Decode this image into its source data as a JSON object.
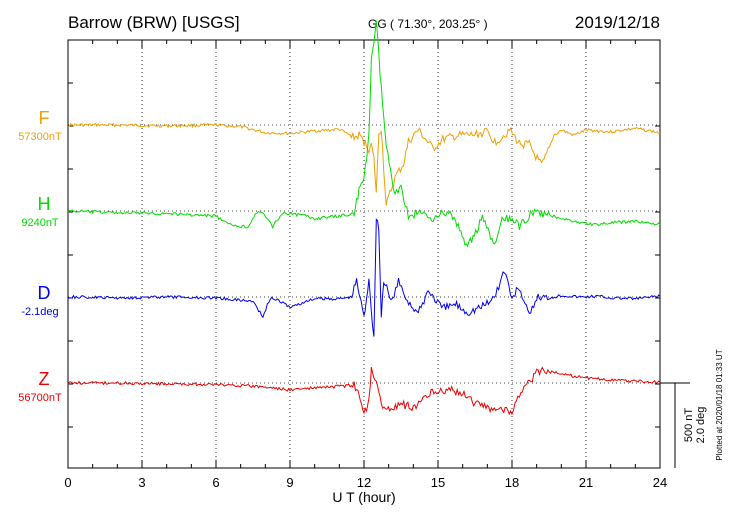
{
  "header": {
    "station": "Barrow (BRW)  [USGS]",
    "coords": "GG ( 71.30°, 203.25° )",
    "date": "2019/12/18"
  },
  "plotted_note": "Plotted at 2020/01/18 01:33 UT",
  "chart_data": {
    "type": "line",
    "xlabel": "U T (hour)",
    "xlim": [
      0,
      24
    ],
    "xticks": [
      0,
      3,
      6,
      9,
      12,
      15,
      18,
      21,
      24
    ],
    "scale_bar": {
      "line1": "500 nT",
      "line2": "2.0 deg"
    },
    "series": [
      {
        "name": "F",
        "baseline": "57300nT",
        "color": "#f0a000",
        "points": [
          [
            0,
            0
          ],
          [
            2,
            0
          ],
          [
            4,
            -5
          ],
          [
            6,
            0
          ],
          [
            7,
            -10
          ],
          [
            8,
            -45
          ],
          [
            9,
            -50
          ],
          [
            10,
            -35
          ],
          [
            11,
            -25
          ],
          [
            11.6,
            -75
          ],
          [
            11.8,
            -60
          ],
          [
            12,
            -100
          ],
          [
            12.2,
            -140
          ],
          [
            12.3,
            -120
          ],
          [
            12.4,
            -200
          ],
          [
            12.5,
            -400
          ],
          [
            12.6,
            -50
          ],
          [
            12.7,
            -20
          ],
          [
            12.9,
            -480
          ],
          [
            13.1,
            -380
          ],
          [
            13.3,
            -300
          ],
          [
            13.6,
            -230
          ],
          [
            13.8,
            -100
          ],
          [
            14.2,
            -30
          ],
          [
            14.8,
            -140
          ],
          [
            15.2,
            -85
          ],
          [
            15.6,
            -70
          ],
          [
            16,
            -60
          ],
          [
            16.4,
            -60
          ],
          [
            17,
            -40
          ],
          [
            17.3,
            -100
          ],
          [
            17.6,
            -70
          ],
          [
            17.9,
            -30
          ],
          [
            18.3,
            -110
          ],
          [
            18.7,
            -115
          ],
          [
            18.9,
            -170
          ],
          [
            19.2,
            -240
          ],
          [
            19.4,
            -180
          ],
          [
            19.7,
            -60
          ],
          [
            20,
            -30
          ],
          [
            20.5,
            -60
          ],
          [
            21,
            -30
          ],
          [
            22,
            -40
          ],
          [
            23,
            -20
          ],
          [
            24,
            -45
          ]
        ]
      },
      {
        "name": "H",
        "baseline": "9240nT",
        "color": "#00dd00",
        "points": [
          [
            0,
            0
          ],
          [
            2,
            -10
          ],
          [
            4,
            -15
          ],
          [
            6,
            -30
          ],
          [
            6.5,
            -80
          ],
          [
            7.3,
            -95
          ],
          [
            7.6,
            -10
          ],
          [
            7.9,
            -15
          ],
          [
            8.3,
            -90
          ],
          [
            8.7,
            -10
          ],
          [
            9.5,
            -25
          ],
          [
            10,
            -45
          ],
          [
            11,
            -30
          ],
          [
            11.4,
            -20
          ],
          [
            11.6,
            -10
          ],
          [
            11.8,
            120
          ],
          [
            12,
            180
          ],
          [
            12.2,
            440
          ],
          [
            12.3,
            900
          ],
          [
            12.5,
            1100
          ],
          [
            12.7,
            720
          ],
          [
            12.9,
            380
          ],
          [
            13.2,
            120
          ],
          [
            13.5,
            140
          ],
          [
            13.8,
            -30
          ],
          [
            14.2,
            -10
          ],
          [
            14.8,
            -40
          ],
          [
            15.2,
            -10
          ],
          [
            15.6,
            -30
          ],
          [
            16.2,
            -210
          ],
          [
            16.8,
            -45
          ],
          [
            17.3,
            -205
          ],
          [
            17.6,
            -60
          ],
          [
            17.9,
            -40
          ],
          [
            18.3,
            -90
          ],
          [
            18.8,
            -10
          ],
          [
            19.2,
            -20
          ],
          [
            19.7,
            -30
          ],
          [
            20.2,
            -50
          ],
          [
            20.8,
            -70
          ],
          [
            21.4,
            -80
          ],
          [
            22,
            -70
          ],
          [
            23,
            -60
          ],
          [
            24,
            -80
          ]
        ]
      },
      {
        "name": "D",
        "baseline": "-2.1deg",
        "color": "#0000ee",
        "points": [
          [
            0,
            0
          ],
          [
            2,
            -5
          ],
          [
            4,
            0
          ],
          [
            6,
            -5
          ],
          [
            7.5,
            -25
          ],
          [
            7.9,
            -115
          ],
          [
            8.2,
            -5
          ],
          [
            8.6,
            -25
          ],
          [
            9,
            -60
          ],
          [
            10,
            -10
          ],
          [
            11,
            -10
          ],
          [
            11.5,
            0
          ],
          [
            11.7,
            100
          ],
          [
            12,
            -120
          ],
          [
            12.2,
            110
          ],
          [
            12.4,
            -250
          ],
          [
            12.5,
            480
          ],
          [
            12.6,
            400
          ],
          [
            12.7,
            -110
          ],
          [
            12.8,
            100
          ],
          [
            13.1,
            -30
          ],
          [
            13.4,
            90
          ],
          [
            13.7,
            -5
          ],
          [
            14.2,
            -100
          ],
          [
            14.6,
            40
          ],
          [
            15.2,
            -70
          ],
          [
            15.7,
            -40
          ],
          [
            16.2,
            -90
          ],
          [
            16.7,
            -60
          ],
          [
            17.1,
            -30
          ],
          [
            17.4,
            40
          ],
          [
            17.7,
            160
          ],
          [
            18,
            -10
          ],
          [
            18.3,
            60
          ],
          [
            18.7,
            -120
          ],
          [
            19,
            0
          ],
          [
            19.5,
            -5
          ],
          [
            20,
            10
          ],
          [
            20.8,
            0
          ],
          [
            21.5,
            5
          ],
          [
            22,
            -5
          ],
          [
            23,
            -10
          ],
          [
            24,
            5
          ]
        ]
      },
      {
        "name": "Z",
        "baseline": "56700nT",
        "color": "#ee0000",
        "points": [
          [
            0,
            0
          ],
          [
            2,
            0
          ],
          [
            4,
            -5
          ],
          [
            6,
            -10
          ],
          [
            7,
            -15
          ],
          [
            8,
            -25
          ],
          [
            9,
            -40
          ],
          [
            10,
            -30
          ],
          [
            11,
            -20
          ],
          [
            11.6,
            -15
          ],
          [
            11.8,
            -80
          ],
          [
            12,
            -180
          ],
          [
            12.2,
            -100
          ],
          [
            12.3,
            100
          ],
          [
            12.5,
            0
          ],
          [
            12.7,
            -130
          ],
          [
            13.1,
            -160
          ],
          [
            13.5,
            -120
          ],
          [
            14,
            -150
          ],
          [
            14.5,
            -70
          ],
          [
            15,
            -40
          ],
          [
            15.5,
            -40
          ],
          [
            16,
            -60
          ],
          [
            16.5,
            -120
          ],
          [
            17,
            -140
          ],
          [
            17.5,
            -155
          ],
          [
            18,
            -165
          ],
          [
            18.3,
            -80
          ],
          [
            18.6,
            -20
          ],
          [
            19,
            70
          ],
          [
            19.4,
            65
          ],
          [
            20,
            60
          ],
          [
            20.5,
            40
          ],
          [
            21,
            30
          ],
          [
            22,
            20
          ],
          [
            23,
            10
          ],
          [
            24,
            5
          ]
        ]
      }
    ]
  }
}
